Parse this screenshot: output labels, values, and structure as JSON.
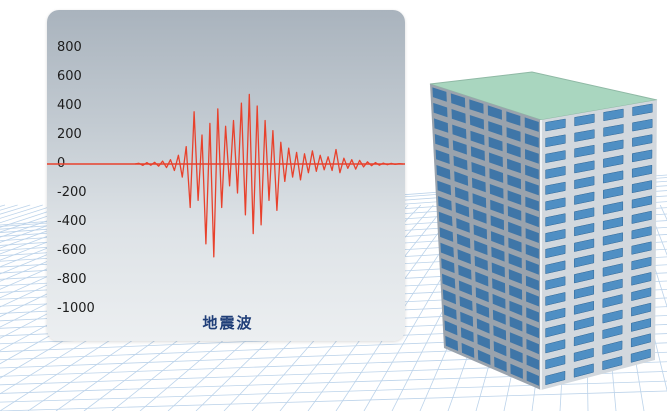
{
  "chart_data": {
    "type": "line",
    "title": "地震波",
    "xlabel": "",
    "ylabel": "",
    "yticks": [
      "800",
      "600",
      "400",
      "200",
      "0",
      "-200",
      "-400",
      "-600",
      "-800",
      "-1000"
    ],
    "ylim": [
      -1000,
      900
    ],
    "series": [
      {
        "color": "#e8412c",
        "values": [
          0,
          5,
          -10,
          10,
          -8,
          12,
          -15,
          20,
          -25,
          30,
          -45,
          60,
          -90,
          120,
          -300,
          360,
          -250,
          200,
          -550,
          280,
          -640,
          380,
          -300,
          260,
          -150,
          300,
          -200,
          420,
          -350,
          480,
          -480,
          400,
          -420,
          300,
          -250,
          230,
          -320,
          150,
          -120,
          110,
          -90,
          80,
          -110,
          70,
          -60,
          90,
          -50,
          60,
          -40,
          50,
          -45,
          100,
          -60,
          40,
          -30,
          30,
          -35,
          25,
          -20,
          15,
          -12,
          10,
          -8,
          6,
          -5,
          4,
          -3,
          2,
          0
        ]
      }
    ]
  },
  "colors": {
    "wave": "#e8412c",
    "building_glass": "#4f8fc4",
    "building_frame": "#d2d8de",
    "roof": "#a9d6bf",
    "grid": "#bcd3ea"
  },
  "icons": {
    "building": "skyscraper-illustration"
  }
}
